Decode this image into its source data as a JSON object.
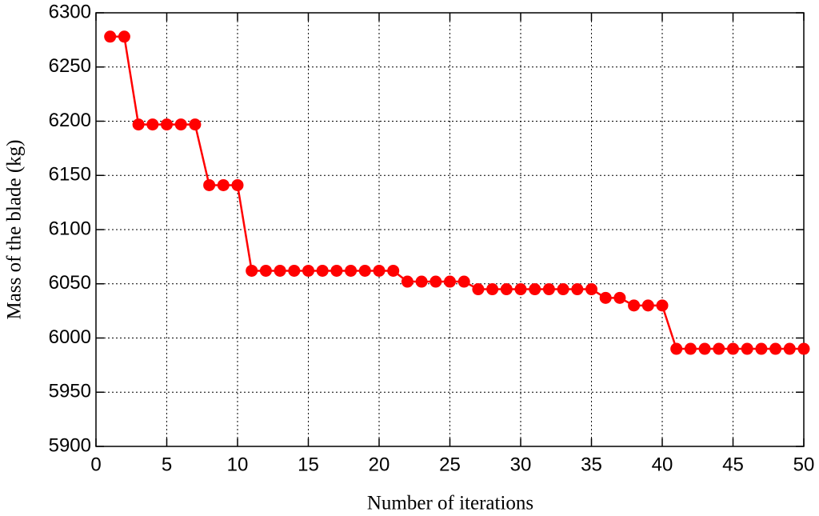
{
  "chart_data": {
    "type": "line",
    "x_label": "Number of iterations",
    "y_label": "Mass of the blade (kg)",
    "x": [
      1,
      2,
      3,
      4,
      5,
      6,
      7,
      8,
      9,
      10,
      11,
      12,
      13,
      14,
      15,
      16,
      17,
      18,
      19,
      20,
      21,
      22,
      23,
      24,
      25,
      26,
      27,
      28,
      29,
      30,
      31,
      32,
      33,
      34,
      35,
      36,
      37,
      38,
      39,
      40,
      41,
      42,
      43,
      44,
      45,
      46,
      47,
      48,
      49,
      50
    ],
    "values": [
      6278,
      6278,
      6197,
      6197,
      6197,
      6197,
      6197,
      6141,
      6141,
      6141,
      6062,
      6062,
      6062,
      6062,
      6062,
      6062,
      6062,
      6062,
      6062,
      6062,
      6062,
      6052,
      6052,
      6052,
      6052,
      6052,
      6045,
      6045,
      6045,
      6045,
      6045,
      6045,
      6045,
      6045,
      6045,
      6037,
      6037,
      6030,
      6030,
      6030,
      5990,
      5990,
      5990,
      5990,
      5990,
      5990,
      5990,
      5990,
      5990,
      5990
    ],
    "color": "#ff0000",
    "xlim": [
      0,
      50
    ],
    "xticks": [
      0,
      5,
      10,
      15,
      20,
      25,
      30,
      35,
      40,
      45,
      50
    ],
    "ylim": [
      5900,
      6300
    ],
    "yticks": [
      5900,
      5950,
      6000,
      6050,
      6100,
      6150,
      6200,
      6250,
      6300
    ],
    "grid": true
  }
}
